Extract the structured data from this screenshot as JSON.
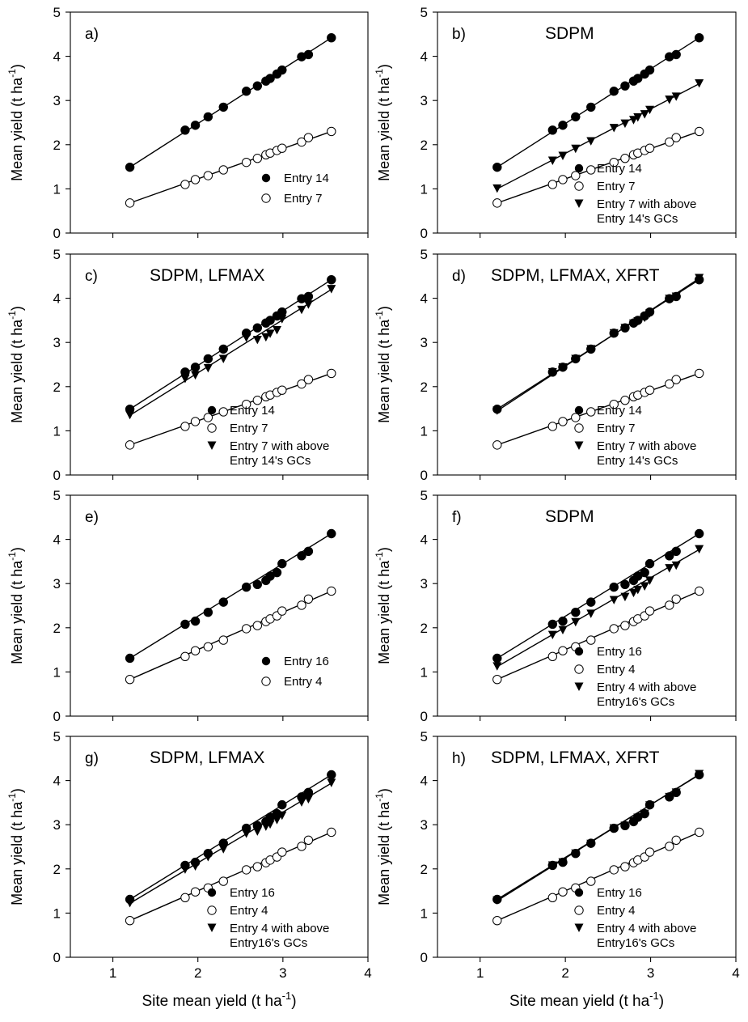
{
  "figure": {
    "xlabel": "Site mean yield (t ha",
    "xlabel_sup": "-1",
    "xlabel_end": ")",
    "ylabel": "Mean yield (t ha",
    "ylabel_sup": "-1",
    "ylabel_end": ")"
  },
  "chart_data": [
    {
      "type": "scatter",
      "panel": "a)",
      "title": "",
      "xlim": [
        0.5,
        4
      ],
      "ylim": [
        0,
        5
      ],
      "xticks": [
        "1",
        "2",
        "3",
        "4"
      ],
      "yticks": [
        "0",
        "1",
        "2",
        "3",
        "4",
        "5"
      ],
      "x": [
        1.2,
        1.85,
        1.97,
        2.12,
        2.3,
        2.57,
        2.7,
        2.8,
        2.85,
        2.93,
        2.99,
        3.22,
        3.3,
        3.57
      ],
      "legend": "bottom-right",
      "grid": false,
      "series": [
        {
          "name": "Entry 14",
          "marker": "filled-circle",
          "values": [
            1.49,
            2.33,
            2.44,
            2.63,
            2.85,
            3.21,
            3.33,
            3.44,
            3.5,
            3.6,
            3.69,
            3.99,
            4.04,
            4.42
          ]
        },
        {
          "name": "Entry 7",
          "marker": "open-circle",
          "values": [
            0.68,
            1.1,
            1.21,
            1.3,
            1.43,
            1.6,
            1.69,
            1.77,
            1.81,
            1.87,
            1.92,
            2.06,
            2.16,
            2.3
          ]
        }
      ]
    },
    {
      "type": "scatter",
      "panel": "b)",
      "title": "SDPM",
      "xlim": [
        0.5,
        4
      ],
      "ylim": [
        0,
        5
      ],
      "xticks": [
        "1",
        "2",
        "3",
        "4"
      ],
      "yticks": [
        "0",
        "1",
        "2",
        "3",
        "4",
        "5"
      ],
      "x": [
        1.2,
        1.85,
        1.97,
        2.12,
        2.3,
        2.57,
        2.7,
        2.8,
        2.85,
        2.93,
        2.99,
        3.22,
        3.3,
        3.57
      ],
      "legend": "bottom-right",
      "grid": false,
      "series": [
        {
          "name": "Entry 14",
          "marker": "filled-circle",
          "values": [
            1.49,
            2.33,
            2.44,
            2.63,
            2.85,
            3.21,
            3.33,
            3.44,
            3.5,
            3.6,
            3.69,
            3.99,
            4.04,
            4.42
          ]
        },
        {
          "name": "Entry 7",
          "marker": "open-circle",
          "values": [
            0.68,
            1.1,
            1.21,
            1.3,
            1.43,
            1.6,
            1.69,
            1.77,
            1.81,
            1.87,
            1.92,
            2.06,
            2.16,
            2.3
          ]
        },
        {
          "name": "Entry 7 with above",
          "name_line2": "Entry 14's GCs",
          "marker": "filled-triangle-down",
          "values": [
            1.0,
            1.63,
            1.74,
            1.9,
            2.07,
            2.37,
            2.47,
            2.55,
            2.61,
            2.68,
            2.78,
            3.01,
            3.08,
            3.38
          ]
        }
      ]
    },
    {
      "type": "scatter",
      "panel": "c)",
      "title": "SDPM, LFMAX",
      "xlim": [
        0.5,
        4
      ],
      "ylim": [
        0,
        5
      ],
      "xticks": [
        "1",
        "2",
        "3",
        "4"
      ],
      "yticks": [
        "0",
        "1",
        "2",
        "3",
        "4",
        "5"
      ],
      "x": [
        1.2,
        1.85,
        1.97,
        2.12,
        2.3,
        2.57,
        2.7,
        2.8,
        2.85,
        2.93,
        2.99,
        3.22,
        3.3,
        3.57
      ],
      "legend": "bottom-right",
      "grid": false,
      "series": [
        {
          "name": "Entry 14",
          "marker": "filled-circle",
          "values": [
            1.49,
            2.33,
            2.44,
            2.63,
            2.85,
            3.21,
            3.33,
            3.44,
            3.5,
            3.6,
            3.69,
            3.99,
            4.04,
            4.42
          ]
        },
        {
          "name": "Entry 7",
          "marker": "open-circle",
          "values": [
            0.68,
            1.1,
            1.21,
            1.3,
            1.43,
            1.6,
            1.69,
            1.77,
            1.81,
            1.87,
            1.92,
            2.06,
            2.16,
            2.3
          ]
        },
        {
          "name": "Entry 7 with above",
          "name_line2": "Entry 14's GCs",
          "marker": "filled-triangle-down",
          "values": [
            1.35,
            2.17,
            2.25,
            2.41,
            2.62,
            3.1,
            3.05,
            3.11,
            3.19,
            3.27,
            3.52,
            3.73,
            3.85,
            4.2
          ]
        }
      ]
    },
    {
      "type": "scatter",
      "panel": "d)",
      "title": "SDPM, LFMAX, XFRT",
      "xlim": [
        0.5,
        4
      ],
      "ylim": [
        0,
        5
      ],
      "xticks": [
        "1",
        "2",
        "3",
        "4"
      ],
      "yticks": [
        "0",
        "1",
        "2",
        "3",
        "4",
        "5"
      ],
      "x": [
        1.2,
        1.85,
        1.97,
        2.12,
        2.3,
        2.57,
        2.7,
        2.8,
        2.85,
        2.93,
        2.99,
        3.22,
        3.3,
        3.57
      ],
      "legend": "bottom-right",
      "grid": false,
      "series": [
        {
          "name": "Entry 14",
          "marker": "filled-circle",
          "values": [
            1.49,
            2.33,
            2.44,
            2.63,
            2.85,
            3.21,
            3.33,
            3.44,
            3.5,
            3.6,
            3.69,
            3.99,
            4.04,
            4.42
          ]
        },
        {
          "name": "Entry 7",
          "marker": "open-circle",
          "values": [
            0.68,
            1.1,
            1.21,
            1.3,
            1.43,
            1.6,
            1.69,
            1.77,
            1.81,
            1.87,
            1.92,
            2.06,
            2.16,
            2.3
          ]
        },
        {
          "name": "Entry 7 with above",
          "name_line2": "Entry 14's GCs",
          "marker": "filled-triangle-down",
          "values": [
            1.45,
            2.32,
            2.43,
            2.62,
            2.84,
            3.2,
            3.32,
            3.42,
            3.47,
            3.55,
            3.65,
            3.98,
            4.03,
            4.45
          ]
        }
      ]
    },
    {
      "type": "scatter",
      "panel": "e)",
      "title": "",
      "xlim": [
        0.5,
        4
      ],
      "ylim": [
        0,
        5
      ],
      "xticks": [
        "1",
        "2",
        "3",
        "4"
      ],
      "yticks": [
        "0",
        "1",
        "2",
        "3",
        "4",
        "5"
      ],
      "x": [
        1.2,
        1.85,
        1.97,
        2.12,
        2.3,
        2.57,
        2.7,
        2.8,
        2.85,
        2.93,
        2.99,
        3.22,
        3.3,
        3.57
      ],
      "legend": "bottom-right",
      "grid": false,
      "series": [
        {
          "name": "Entry 16",
          "marker": "filled-circle",
          "values": [
            1.31,
            2.08,
            2.15,
            2.35,
            2.58,
            2.92,
            2.98,
            3.07,
            3.17,
            3.25,
            3.45,
            3.63,
            3.73,
            4.13
          ]
        },
        {
          "name": "Entry 4",
          "marker": "open-circle",
          "values": [
            0.83,
            1.35,
            1.48,
            1.57,
            1.72,
            1.98,
            2.05,
            2.14,
            2.2,
            2.27,
            2.38,
            2.51,
            2.65,
            2.83
          ]
        }
      ]
    },
    {
      "type": "scatter",
      "panel": "f)",
      "title": "SDPM",
      "xlim": [
        0.5,
        4
      ],
      "ylim": [
        0,
        5
      ],
      "xticks": [
        "1",
        "2",
        "3",
        "4"
      ],
      "yticks": [
        "0",
        "1",
        "2",
        "3",
        "4",
        "5"
      ],
      "x": [
        1.2,
        1.85,
        1.97,
        2.12,
        2.3,
        2.57,
        2.7,
        2.8,
        2.85,
        2.93,
        2.99,
        3.22,
        3.3,
        3.57
      ],
      "legend": "bottom-right",
      "grid": false,
      "series": [
        {
          "name": "Entry 16",
          "marker": "filled-circle",
          "values": [
            1.31,
            2.08,
            2.15,
            2.35,
            2.58,
            2.92,
            2.98,
            3.07,
            3.17,
            3.25,
            3.45,
            3.63,
            3.73,
            4.13
          ]
        },
        {
          "name": "Entry 4",
          "marker": "open-circle",
          "values": [
            0.83,
            1.35,
            1.48,
            1.57,
            1.72,
            1.98,
            2.05,
            2.14,
            2.2,
            2.27,
            2.38,
            2.51,
            2.65,
            2.83
          ]
        },
        {
          "name": "Entry 4 with above",
          "name_line2": "Entry16's GCs",
          "marker": "filled-triangle-down",
          "values": [
            1.12,
            1.83,
            1.94,
            2.12,
            2.31,
            2.62,
            2.69,
            2.78,
            2.85,
            2.93,
            3.06,
            3.34,
            3.4,
            3.77
          ]
        }
      ]
    },
    {
      "type": "scatter",
      "panel": "g)",
      "title": "SDPM, LFMAX",
      "xlim": [
        0.5,
        4
      ],
      "ylim": [
        0,
        5
      ],
      "xticks": [
        "1",
        "2",
        "3",
        "4"
      ],
      "yticks": [
        "0",
        "1",
        "2",
        "3",
        "4",
        "5"
      ],
      "x": [
        1.2,
        1.85,
        1.97,
        2.12,
        2.3,
        2.57,
        2.7,
        2.8,
        2.85,
        2.93,
        2.99,
        3.22,
        3.3,
        3.57
      ],
      "legend": "bottom-right",
      "grid": false,
      "series": [
        {
          "name": "Entry 16",
          "marker": "filled-circle",
          "values": [
            1.31,
            2.08,
            2.15,
            2.35,
            2.58,
            2.92,
            2.98,
            3.07,
            3.17,
            3.25,
            3.45,
            3.63,
            3.73,
            4.13
          ]
        },
        {
          "name": "Entry 4",
          "marker": "open-circle",
          "values": [
            0.83,
            1.35,
            1.48,
            1.57,
            1.72,
            1.98,
            2.05,
            2.14,
            2.2,
            2.27,
            2.38,
            2.51,
            2.65,
            2.83
          ]
        },
        {
          "name": "Entry 4 with above",
          "name_line2": "Entry16's GCs",
          "marker": "filled-triangle-down",
          "values": [
            1.22,
            1.98,
            2.05,
            2.26,
            2.44,
            2.79,
            2.84,
            2.95,
            3.0,
            3.1,
            3.2,
            3.5,
            3.57,
            3.94
          ]
        }
      ]
    },
    {
      "type": "scatter",
      "panel": "h)",
      "title": "SDPM, LFMAX, XFRT",
      "xlim": [
        0.5,
        4
      ],
      "ylim": [
        0,
        5
      ],
      "xticks": [
        "1",
        "2",
        "3",
        "4"
      ],
      "yticks": [
        "0",
        "1",
        "2",
        "3",
        "4",
        "5"
      ],
      "x": [
        1.2,
        1.85,
        1.97,
        2.12,
        2.3,
        2.57,
        2.7,
        2.8,
        2.85,
        2.93,
        2.99,
        3.22,
        3.3,
        3.57
      ],
      "legend": "bottom-right",
      "grid": false,
      "series": [
        {
          "name": "Entry 16",
          "marker": "filled-circle",
          "values": [
            1.31,
            2.08,
            2.15,
            2.35,
            2.58,
            2.92,
            2.98,
            3.07,
            3.17,
            3.25,
            3.45,
            3.63,
            3.73,
            4.13
          ]
        },
        {
          "name": "Entry 4",
          "marker": "open-circle",
          "values": [
            0.83,
            1.35,
            1.48,
            1.57,
            1.72,
            1.98,
            2.05,
            2.14,
            2.2,
            2.27,
            2.38,
            2.51,
            2.65,
            2.83
          ]
        },
        {
          "name": "Entry 4 with above",
          "name_line2": "Entry16's GCs",
          "marker": "filled-triangle-down",
          "values": [
            1.28,
            2.07,
            2.14,
            2.34,
            2.56,
            2.91,
            2.97,
            3.06,
            3.15,
            3.24,
            3.43,
            3.62,
            3.72,
            4.14
          ]
        }
      ]
    }
  ]
}
